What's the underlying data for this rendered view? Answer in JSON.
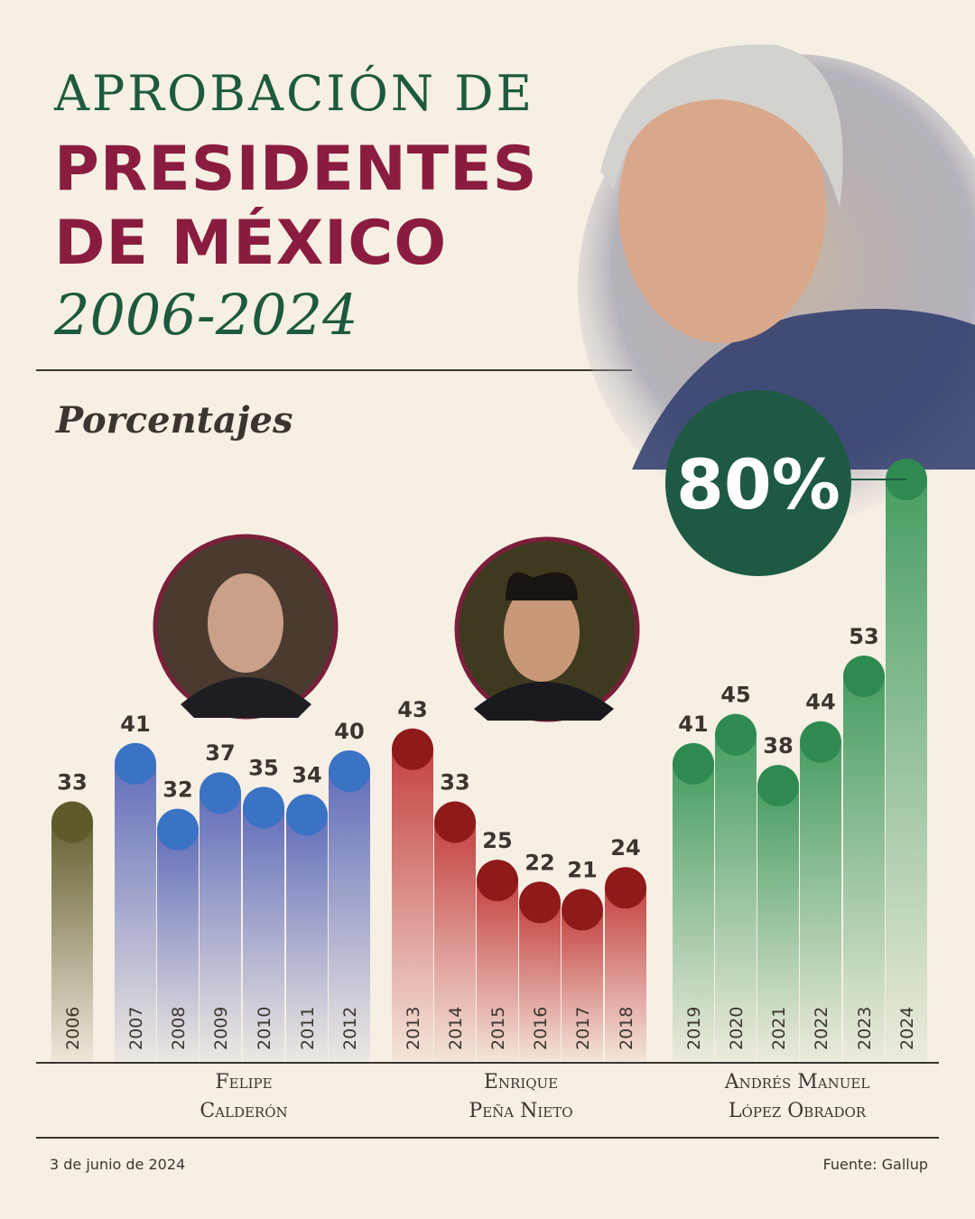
{
  "title": {
    "line1": "APROBACIÓN DE",
    "line2": "PRESIDENTES",
    "line3": "DE MÉXICO",
    "years": "2006-2024"
  },
  "subtitle": "Porcentajes",
  "highlight": {
    "value": "80%"
  },
  "footer": {
    "date": "3 de junio de 2024",
    "source": "Fuente: Gallup"
  },
  "colors": {
    "background": "#f6efe4",
    "title_green": "#1d5a3d",
    "title_maroon": "#8a1d3f",
    "previous": "#5f5a2a",
    "calderon": "#3a72c4",
    "pena_nieto": "#8f1a1a",
    "amlo": "#2f8a4f"
  },
  "chart_data": {
    "type": "bar",
    "ylabel": "Porcentajes",
    "ylim": [
      0,
      80
    ],
    "grid": false,
    "categories": [
      "2006",
      "2007",
      "2008",
      "2009",
      "2010",
      "2011",
      "2012",
      "2013",
      "2014",
      "2015",
      "2016",
      "2017",
      "2018",
      "2019",
      "2020",
      "2021",
      "2022",
      "2023",
      "2024"
    ],
    "values": [
      33,
      41,
      32,
      37,
      35,
      34,
      40,
      43,
      33,
      25,
      22,
      21,
      24,
      41,
      45,
      38,
      44,
      53,
      80
    ],
    "groups": [
      {
        "name": "",
        "years": [
          "2006"
        ],
        "color": "#5f5a2a"
      },
      {
        "name": [
          "Felipe",
          "Calderón"
        ],
        "years": [
          "2007",
          "2008",
          "2009",
          "2010",
          "2011",
          "2012"
        ],
        "color": "#3a72c4"
      },
      {
        "name": [
          "Enrique",
          "Peña Nieto"
        ],
        "years": [
          "2013",
          "2014",
          "2015",
          "2016",
          "2017",
          "2018"
        ],
        "color": "#8f1a1a"
      },
      {
        "name": [
          "Andrés Manuel",
          "López Obrador"
        ],
        "years": [
          "2019",
          "2020",
          "2021",
          "2022",
          "2023",
          "2024"
        ],
        "color": "#2f8a4f"
      }
    ]
  }
}
